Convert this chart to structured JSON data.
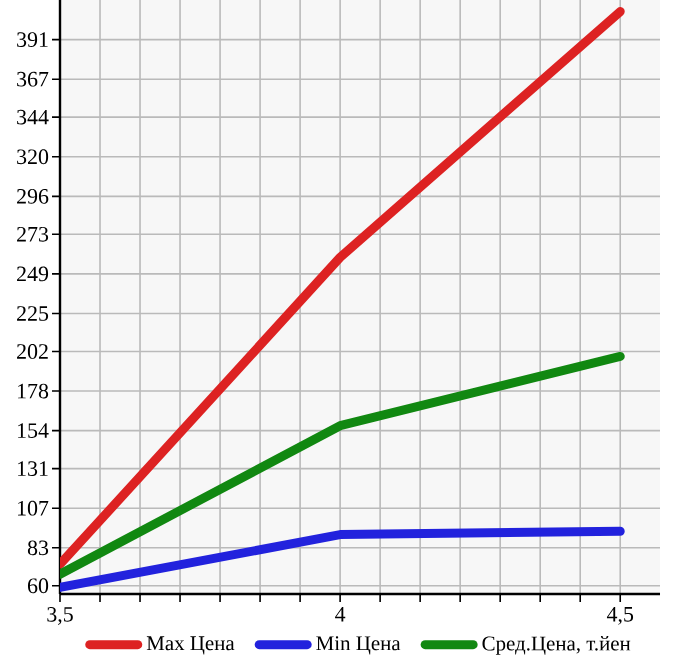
{
  "chart_data": {
    "type": "line",
    "x": [
      3.5,
      4,
      4.5
    ],
    "series": [
      {
        "name": "Max Цена",
        "color": "#dd2222",
        "values": [
          73,
          259,
          408
        ]
      },
      {
        "name": "Min Цена",
        "color": "#2222dd",
        "values": [
          59,
          91,
          93
        ]
      },
      {
        "name": "Сред.Цена, т.йен",
        "color": "#118811",
        "values": [
          67,
          157,
          199
        ]
      }
    ],
    "xlim": [
      3.5,
      4.571
    ],
    "xticks": [
      {
        "value": 3.5,
        "label": "3,5"
      },
      4,
      {
        "value": 4.5,
        "label": "4,5"
      }
    ],
    "ylim": [
      55,
      415
    ],
    "yticks": [
      60,
      83,
      107,
      131,
      154,
      178,
      202,
      225,
      249,
      273,
      296,
      320,
      344,
      367,
      391
    ],
    "grid": true,
    "legend": "bottom",
    "marker": "none",
    "line_style": "solid"
  }
}
